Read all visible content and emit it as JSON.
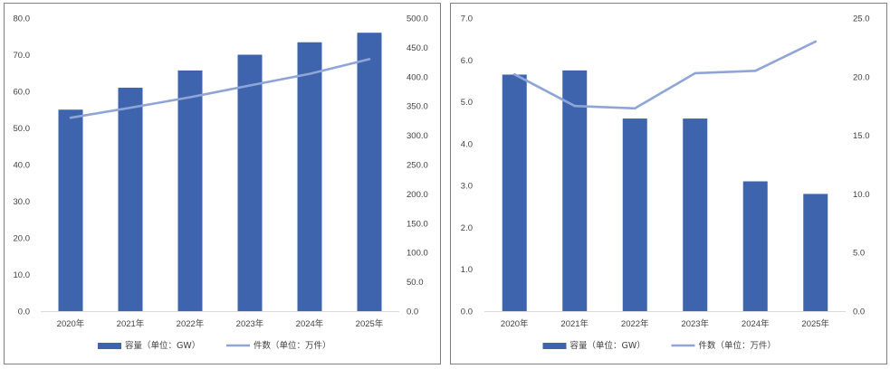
{
  "chart_data": [
    {
      "type": "bar",
      "categories": [
        "2020年",
        "2021年",
        "2022年",
        "2023年",
        "2024年",
        "2025年"
      ],
      "y_left": {
        "ticks": [
          "0.0",
          "10.0",
          "20.0",
          "30.0",
          "40.0",
          "50.0",
          "60.0",
          "70.0",
          "80.0"
        ],
        "ylim": [
          0,
          80
        ]
      },
      "y_right": {
        "ticks": [
          "0.0",
          "50.0",
          "100.0",
          "150.0",
          "200.0",
          "250.0",
          "300.0",
          "350.0",
          "400.0",
          "450.0",
          "500.0"
        ],
        "ylim": [
          0,
          500
        ]
      },
      "series": [
        {
          "name": "容量（单位：GW）",
          "type": "bar",
          "axis": "left",
          "color": "#3e64ad",
          "values": [
            55.0,
            61.0,
            65.7,
            70.0,
            73.4,
            76.0
          ]
        },
        {
          "name": "件数（单位：万件）",
          "type": "line",
          "axis": "right",
          "color": "#8fa5d7",
          "values": [
            330,
            347,
            365,
            385,
            405,
            430
          ]
        }
      ],
      "legend": "bottom"
    },
    {
      "type": "bar",
      "categories": [
        "2020年",
        "2021年",
        "2022年",
        "2023年",
        "2024年",
        "2025年"
      ],
      "y_left": {
        "ticks": [
          "0.0",
          "1.0",
          "2.0",
          "3.0",
          "4.0",
          "5.0",
          "6.0",
          "7.0"
        ],
        "ylim": [
          0,
          7
        ]
      },
      "y_right": {
        "ticks": [
          "0.0",
          "5.0",
          "10.0",
          "15.0",
          "20.0",
          "25.0"
        ],
        "ylim": [
          0,
          25
        ]
      },
      "series": [
        {
          "name": "容量（单位：GW）",
          "type": "bar",
          "axis": "left",
          "color": "#3e64ad",
          "values": [
            5.65,
            5.75,
            4.6,
            4.6,
            3.1,
            2.8
          ]
        },
        {
          "name": "件数（单位：万件）",
          "type": "line",
          "axis": "right",
          "color": "#8fa5d7",
          "values": [
            20.2,
            17.5,
            17.3,
            20.3,
            20.5,
            23.0
          ]
        }
      ],
      "legend": "bottom"
    }
  ]
}
